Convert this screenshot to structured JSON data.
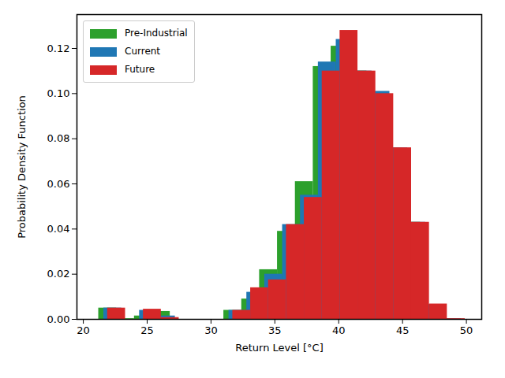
{
  "chart_data": {
    "type": "histogram",
    "xlabel": "Return Level [°C]",
    "ylabel": "Probability Density Function",
    "xlim": [
      19.5,
      51.2
    ],
    "ylim": [
      0,
      0.135
    ],
    "xticks": [
      20,
      25,
      30,
      35,
      40,
      45,
      50
    ],
    "yticks": [
      {
        "value": 0,
        "label": "0.00"
      },
      {
        "value": 0.02,
        "label": "0.02"
      },
      {
        "value": 0.04,
        "label": "0.04"
      },
      {
        "value": 0.06,
        "label": "0.06"
      },
      {
        "value": 0.08,
        "label": "0.08"
      },
      {
        "value": 0.1,
        "label": "0.10"
      },
      {
        "value": 0.12,
        "label": "0.12"
      }
    ],
    "legend": "upper left",
    "series": [
      {
        "name": "Pre-Industrial",
        "color": "#2ca02c",
        "bins": [
          21.2,
          22.6,
          24.0,
          25.4,
          26.8,
          28.2,
          29.6,
          31.0,
          32.4,
          33.8,
          35.2,
          36.6,
          38.0,
          39.4,
          40.8,
          42.2,
          43.6,
          45.0,
          46.4,
          47.8,
          49.2
        ],
        "values": [
          0.005,
          0.0003,
          0.0015,
          0.0035,
          0,
          0,
          0,
          0.004,
          0.009,
          0.022,
          0.039,
          0.061,
          0.112,
          0.121,
          0.11,
          0.1,
          0.076,
          0.043,
          0.0065,
          0.0003
        ]
      },
      {
        "name": "Current",
        "color": "#1f77b4",
        "bins": [
          21.6,
          23.0,
          24.4,
          25.8,
          27.2,
          28.6,
          30.0,
          31.4,
          32.8,
          34.2,
          35.6,
          37.0,
          38.4,
          39.8,
          41.2,
          42.6,
          44.0,
          45.4,
          46.8,
          48.2,
          49.6
        ],
        "values": [
          0.005,
          0,
          0.004,
          0.0015,
          0,
          0,
          0,
          0.004,
          0.012,
          0.02,
          0.042,
          0.055,
          0.114,
          0.124,
          0.11,
          0.101,
          0.076,
          0.043,
          0.0065,
          0.0003
        ]
      },
      {
        "name": "Future",
        "color": "#d62728",
        "bins": [
          21.9,
          23.3,
          24.7,
          26.1,
          27.5,
          28.9,
          30.3,
          31.7,
          33.1,
          34.5,
          35.9,
          37.3,
          38.7,
          40.1,
          41.5,
          42.9,
          44.3,
          45.7,
          47.1,
          48.5,
          49.9
        ],
        "values": [
          0.005,
          0,
          0.0045,
          0.0008,
          0,
          0,
          0,
          0.004,
          0.014,
          0.0175,
          0.042,
          0.054,
          0.11,
          0.128,
          0.11,
          0.1,
          0.076,
          0.043,
          0.0068,
          0.0003
        ]
      }
    ]
  }
}
